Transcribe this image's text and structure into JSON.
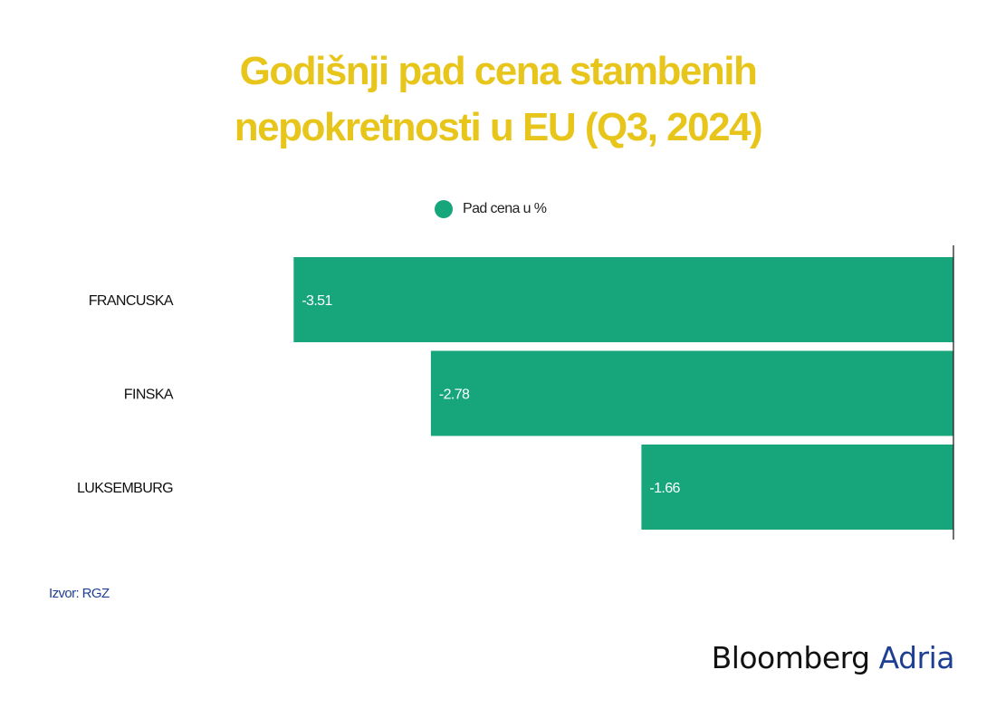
{
  "title_lines": [
    "Godišnji pad cena stambenih",
    "nepokretnosti u EU (Q3, 2024)"
  ],
  "colors": {
    "title": "#e8c51b",
    "bar": "#17a67b",
    "axis": "#222222",
    "source": "#1f3f93",
    "brand_accent": "#1f3f93"
  },
  "legend": {
    "label": "Pad cena u %"
  },
  "chart_data": {
    "type": "bar",
    "orientation": "horizontal",
    "title": "Godišnji pad cena stambenih nepokretnosti u EU (Q3, 2024)",
    "categories": [
      "FRANCUSKA",
      "FINSKA",
      "LUKSEMBURG"
    ],
    "series": [
      {
        "name": "Pad cena u %",
        "values": [
          -3.51,
          -2.78,
          -1.66
        ]
      }
    ],
    "data_labels": [
      "-3.51",
      "-2.78",
      "-1.66"
    ],
    "xlim": [
      -4.5,
      0
    ],
    "xlabel": "",
    "ylabel": "",
    "grid": false,
    "legend_position": "top-center"
  },
  "source": "Izvor: RGZ",
  "brand": {
    "name": "Bloomberg",
    "accent": "Adria"
  }
}
